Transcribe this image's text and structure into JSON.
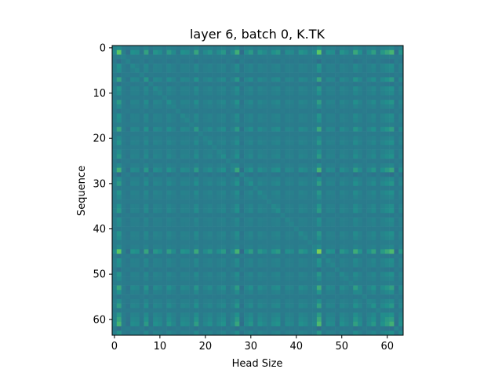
{
  "chart_data": {
    "type": "heatmap",
    "title": "layer 6, batch 0, K.TK",
    "xlabel": "Head Size",
    "ylabel": "Sequence",
    "xlim": [
      -0.5,
      63.5
    ],
    "ylim": [
      63.5,
      -0.5
    ],
    "y_axis_inverted": true,
    "grid": false,
    "legend": "none",
    "colormap": "viridis",
    "x_ticks": [
      0,
      10,
      20,
      30,
      40,
      50,
      60
    ],
    "y_ticks": [
      0,
      10,
      20,
      30,
      40,
      50,
      60
    ],
    "x_tick_labels": [
      "0",
      "10",
      "20",
      "30",
      "40",
      "50",
      "60"
    ],
    "y_tick_labels": [
      "0",
      "10",
      "20",
      "30",
      "40",
      "50",
      "60"
    ],
    "rows": 64,
    "cols": 64,
    "value_range": [
      -1.0,
      1.0
    ],
    "description_of_values": "Symmetric 64x64 Gram matrix (K times K transpose); values are approximated as a baseline of about 0.0 (teal) with per-index strengths; index 45 and 1 and 61 show the brightest (yellow-green) cells, index 27 and 45 show dark (purple) cross terms.",
    "index_strength": [
      0.05,
      0.9,
      -0.1,
      -0.3,
      0.15,
      0.1,
      -0.2,
      0.4,
      -0.25,
      0.2,
      0.1,
      -0.15,
      0.3,
      0.05,
      -0.2,
      0.15,
      0.1,
      -0.1,
      0.45,
      -0.15,
      0.05,
      0.2,
      -0.1,
      0.1,
      0.25,
      -0.2,
      0.05,
      0.6,
      -0.35,
      0.1,
      0.3,
      -0.15,
      0.2,
      0.05,
      -0.1,
      0.15,
      0.25,
      -0.2,
      0.1,
      0.05,
      -0.15,
      0.2,
      0.1,
      -0.1,
      0.05,
      1.0,
      -0.2,
      0.15,
      0.1,
      -0.25,
      0.2,
      0.05,
      -0.1,
      0.5,
      0.15,
      -0.2,
      0.1,
      0.35,
      -0.15,
      0.25,
      0.45,
      0.7,
      -0.3,
      0.2
    ]
  }
}
